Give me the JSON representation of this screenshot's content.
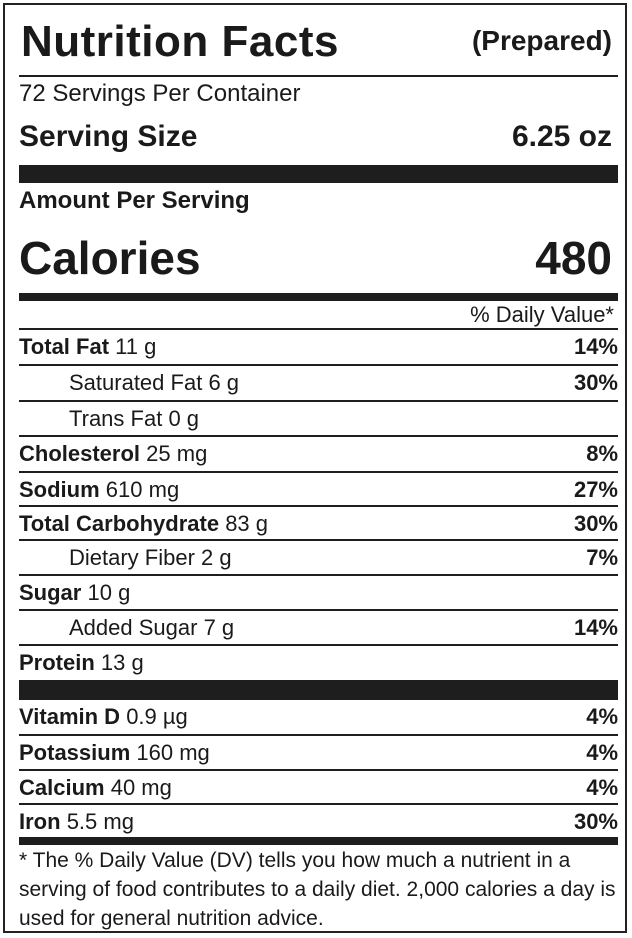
{
  "header": {
    "title": "Nutrition Facts",
    "qualifier": "(Prepared)"
  },
  "servings_per_container": "72 Servings Per Container",
  "serving_size": {
    "label": "Serving Size",
    "value": "6.25 oz"
  },
  "amount_per_serving": "Amount Per Serving",
  "calories": {
    "label": "Calories",
    "value": "480"
  },
  "daily_value_header": "% Daily Value*",
  "nutrients": [
    {
      "name": "Total Fat",
      "amount": "11 g",
      "dv": "14%"
    },
    {
      "name": "Saturated Fat",
      "amount": "6 g",
      "dv": "30%"
    },
    {
      "name": "Trans Fat",
      "amount": "0 g",
      "dv": ""
    },
    {
      "name": "Cholesterol",
      "amount": "25 mg",
      "dv": "8%"
    },
    {
      "name": "Sodium",
      "amount": "610 mg",
      "dv": "27%"
    },
    {
      "name": "Total Carbohydrate",
      "amount": "83 g",
      "dv": "30%"
    },
    {
      "name": "Dietary Fiber",
      "amount": "2 g",
      "dv": "7%"
    },
    {
      "name": "Sugar",
      "amount": "10 g",
      "dv": ""
    },
    {
      "name": "Added Sugar",
      "amount": "7 g",
      "dv": "14%"
    },
    {
      "name": "Protein",
      "amount": "13 g",
      "dv": ""
    }
  ],
  "vitamins": [
    {
      "name": "Vitamin D",
      "amount": "0.9 µg",
      "dv": "4%"
    },
    {
      "name": "Potassium",
      "amount": "160 mg",
      "dv": "4%"
    },
    {
      "name": "Calcium",
      "amount": "40 mg",
      "dv": "4%"
    },
    {
      "name": "Iron",
      "amount": "5.5 mg",
      "dv": "30%"
    }
  ],
  "footnote": "* The % Daily Value (DV) tells you how much a nutrient in a serving of food contributes to a daily diet. 2,000 calories a day is used for general nutrition advice."
}
